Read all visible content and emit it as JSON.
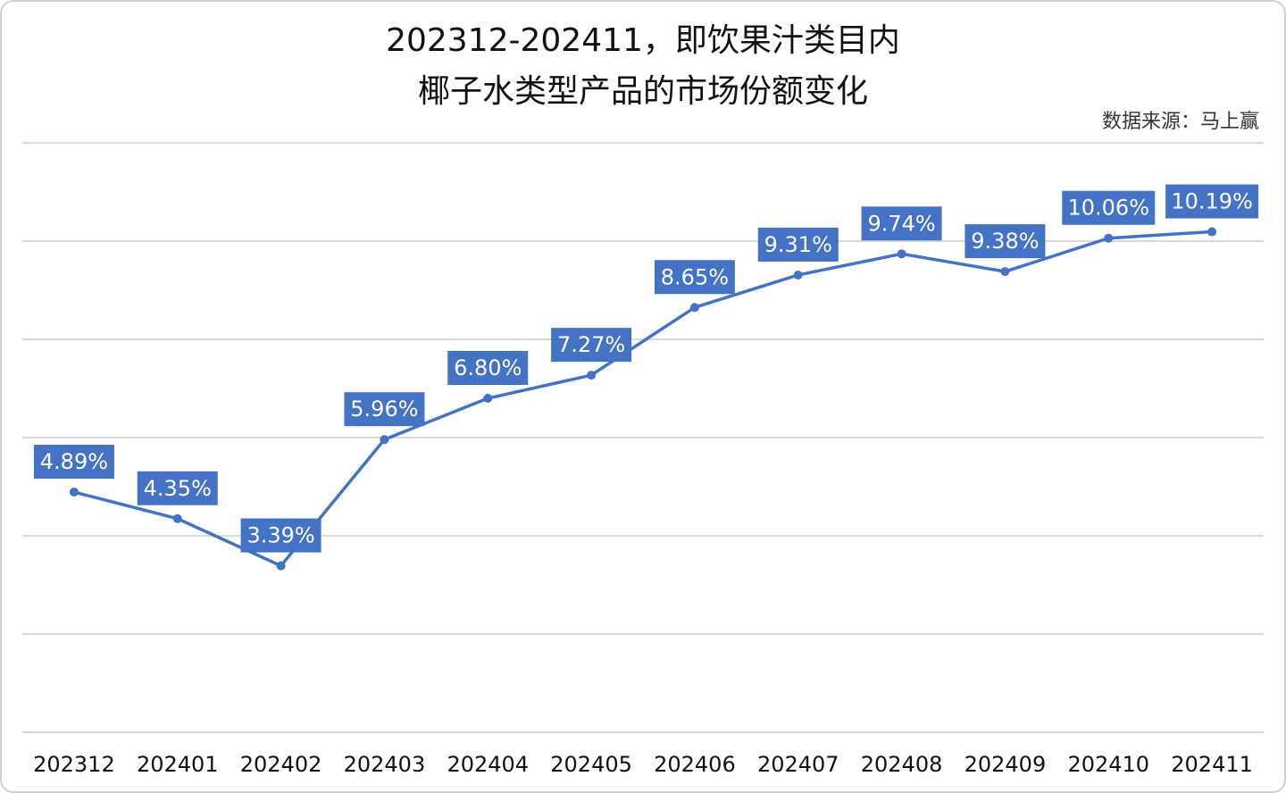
{
  "chart_data": {
    "type": "line",
    "title": [
      "202312-202411，即饮果汁类目内",
      "椰子水类型产品的市场份额变化"
    ],
    "annotation": "数据来源：马上赢",
    "categories": [
      "202312",
      "202401",
      "202402",
      "202403",
      "202404",
      "202405",
      "202406",
      "202407",
      "202408",
      "202409",
      "202410",
      "202411"
    ],
    "series": [
      {
        "color": "#4472c4",
        "values": [
          4.89,
          4.35,
          3.39,
          5.96,
          6.8,
          7.27,
          8.65,
          9.31,
          9.74,
          9.38,
          10.06,
          10.19
        ],
        "value_labels": [
          "4.89%",
          "4.35%",
          "3.39%",
          "5.96%",
          "6.80%",
          "7.27%",
          "8.65%",
          "9.31%",
          "9.74%",
          "9.38%",
          "10.06%",
          "10.19%"
        ]
      }
    ],
    "ylim": [
      0,
      12
    ],
    "yticks": [
      0,
      2,
      4,
      6,
      8,
      10,
      12
    ],
    "grid": true
  }
}
